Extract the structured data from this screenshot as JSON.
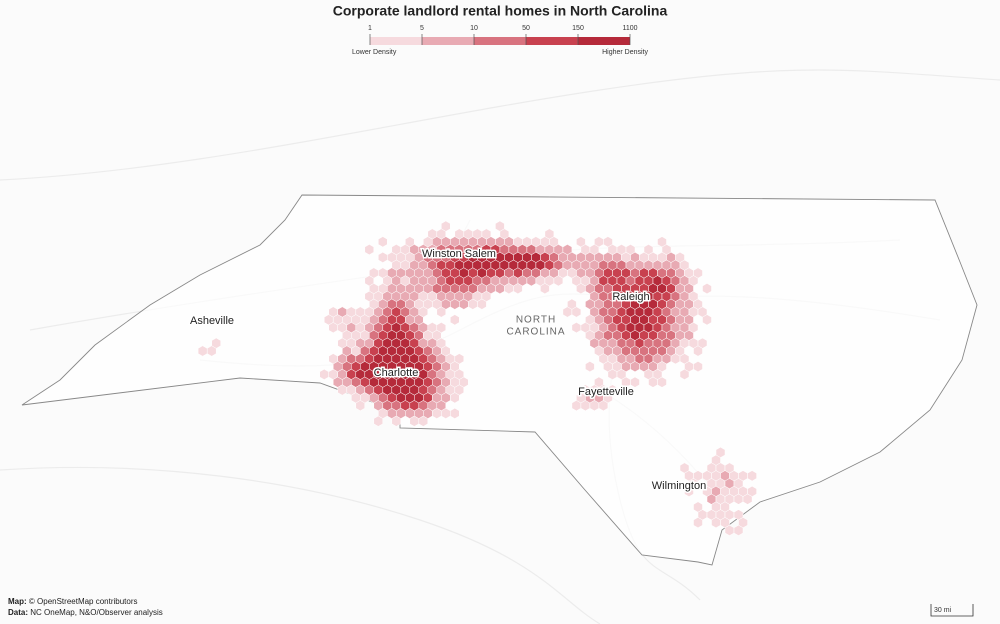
{
  "title": "Corporate landlord rental homes in North Carolina",
  "legend": {
    "ticks": [
      1,
      5,
      10,
      50,
      150,
      1100
    ],
    "colors": [
      "#f6dade",
      "#e8aab3",
      "#d8737f",
      "#c8414f",
      "#b52a3a"
    ],
    "low_label": "Lower Density",
    "high_label": "Higher Density"
  },
  "map": {
    "state_label": [
      "NORTH",
      "CAROLINA"
    ],
    "cities": [
      "Winston Salem",
      "Raleigh",
      "Asheville",
      "Charlotte",
      "Fayetteville",
      "Wilmington"
    ]
  },
  "credits": {
    "map_key": "Map:",
    "map_text": "© OpenStreetMap contributors",
    "data_key": "Data:",
    "data_text": "NC OneMap, N&O/Observer analysis"
  },
  "scale_label": "30 mi"
}
